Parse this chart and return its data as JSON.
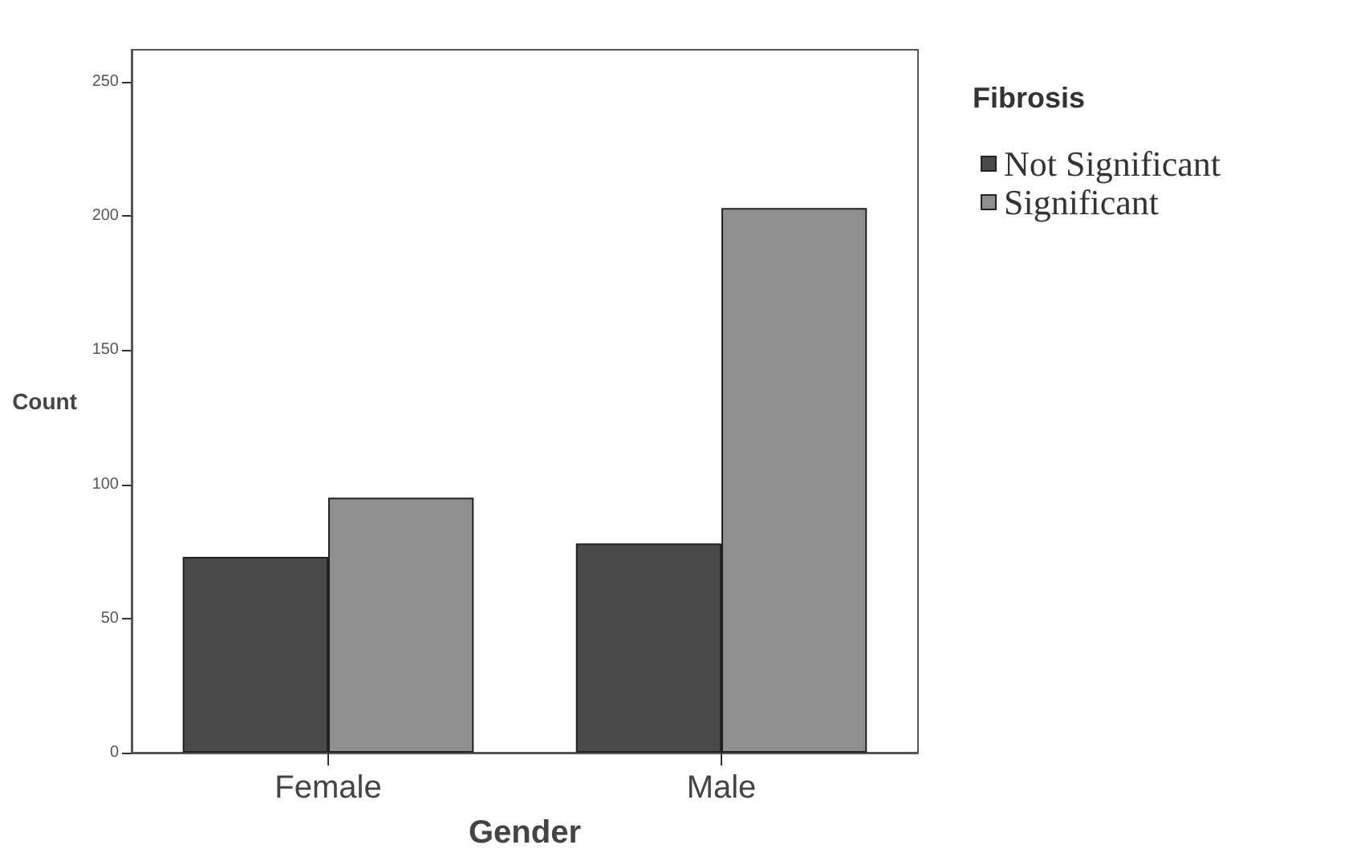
{
  "chart_data": {
    "type": "bar",
    "xlabel": "Gender",
    "ylabel": "Count",
    "legend_title": "Fibrosis",
    "categories": [
      "Female",
      "Male"
    ],
    "series": [
      {
        "name": "Not Significant",
        "color": "#4a4a4a",
        "values": [
          73,
          78
        ]
      },
      {
        "name": "Significant",
        "color": "#8f8f8f",
        "values": [
          95,
          203
        ]
      }
    ],
    "ylim": [
      0,
      262
    ],
    "yticks": [
      0,
      50,
      100,
      150,
      200,
      250
    ],
    "grid": false,
    "legend": "top right"
  }
}
